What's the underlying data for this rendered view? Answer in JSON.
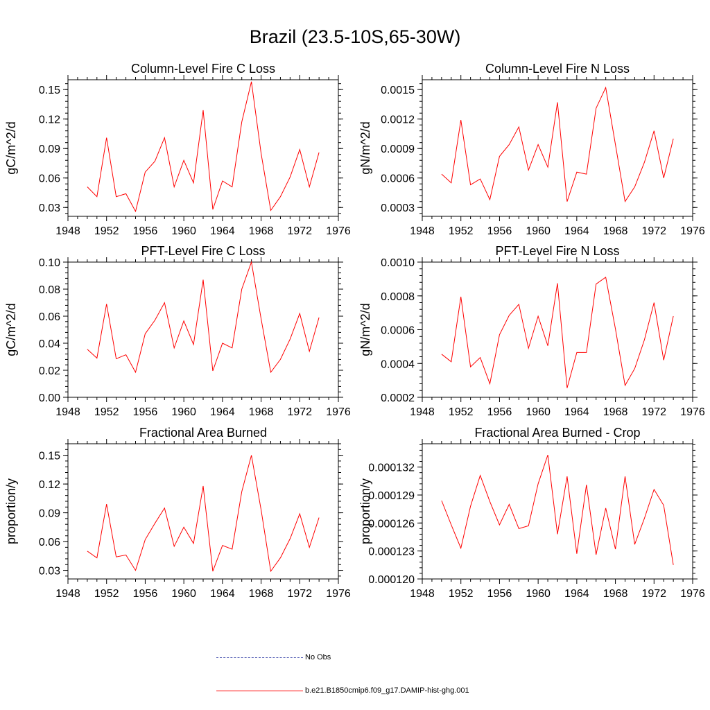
{
  "page_title": "Brazil (23.5-10S,65-30W)",
  "colors": {
    "series": "#ff0000",
    "obs": "#4a55b0",
    "axis": "#000000"
  },
  "legend": {
    "obs_label": "No Obs",
    "model_label": "b.e21.B1850cmip6.f09_g17.DAMIP-hist-ghg.001"
  },
  "chart_data": [
    {
      "type": "line",
      "title": "Column-Level Fire C Loss",
      "ylabel": "gC/m^2/d",
      "xlim": [
        1948,
        1976
      ],
      "ylim": [
        0.021,
        0.16
      ],
      "xticks": [
        "1948",
        "1952",
        "1956",
        "1960",
        "1964",
        "1968",
        "1972",
        "1976"
      ],
      "yticks": [
        0.03,
        0.06,
        0.09,
        0.12,
        0.15
      ],
      "ytick_labels": [
        "0.03",
        "0.06",
        "0.09",
        "0.12",
        "0.15"
      ],
      "x": [
        1950,
        1951,
        1952,
        1953,
        1954,
        1955,
        1956,
        1957,
        1958,
        1959,
        1960,
        1961,
        1962,
        1963,
        1964,
        1965,
        1966,
        1967,
        1968,
        1969,
        1970,
        1971,
        1972,
        1973,
        1974
      ],
      "series": [
        {
          "values": [
            0.051,
            0.041,
            0.101,
            0.041,
            0.044,
            0.026,
            0.066,
            0.077,
            0.101,
            0.051,
            0.078,
            0.055,
            0.129,
            0.028,
            0.057,
            0.051,
            0.117,
            0.158,
            0.085,
            0.027,
            0.041,
            0.061,
            0.089,
            0.051,
            0.086
          ]
        }
      ]
    },
    {
      "type": "line",
      "title": "Column-Level Fire N Loss",
      "ylabel": "gN/m^2/d",
      "xlim": [
        1948,
        1976
      ],
      "ylim": [
        0.00021,
        0.0016
      ],
      "xticks": [
        "1948",
        "1952",
        "1956",
        "1960",
        "1964",
        "1968",
        "1972",
        "1976"
      ],
      "yticks": [
        0.0003,
        0.0006,
        0.0009,
        0.0012,
        0.0015
      ],
      "ytick_labels": [
        "0.0003",
        "0.0006",
        "0.0009",
        "0.0012",
        "0.0015"
      ],
      "x": [
        1950,
        1951,
        1952,
        1953,
        1954,
        1955,
        1956,
        1957,
        1958,
        1959,
        1960,
        1961,
        1962,
        1963,
        1964,
        1965,
        1966,
        1967,
        1968,
        1969,
        1970,
        1971,
        1972,
        1973,
        1974
      ],
      "series": [
        {
          "values": [
            0.00064,
            0.00055,
            0.00119,
            0.00053,
            0.00059,
            0.00038,
            0.00082,
            0.00094,
            0.00112,
            0.00068,
            0.00094,
            0.00071,
            0.00137,
            0.00036,
            0.00066,
            0.00064,
            0.00131,
            0.00152,
            0.00094,
            0.00036,
            0.00051,
            0.00076,
            0.00108,
            0.0006,
            0.001
          ]
        }
      ]
    },
    {
      "type": "line",
      "title": "PFT-Level Fire C Loss",
      "ylabel": "gC/m^2/d",
      "xlim": [
        1948,
        1976
      ],
      "ylim": [
        0,
        0.1
      ],
      "xticks": [
        "1948",
        "1952",
        "1956",
        "1960",
        "1964",
        "1968",
        "1972",
        "1976"
      ],
      "yticks": [
        0,
        0.02,
        0.04,
        0.06,
        0.08,
        0.1
      ],
      "ytick_labels": [
        "0.00",
        "0.02",
        "0.04",
        "0.06",
        "0.08",
        "0.10"
      ],
      "x": [
        1950,
        1951,
        1952,
        1953,
        1954,
        1955,
        1956,
        1957,
        1958,
        1959,
        1960,
        1961,
        1962,
        1963,
        1964,
        1965,
        1966,
        1967,
        1968,
        1969,
        1970,
        1971,
        1972,
        1973,
        1974
      ],
      "series": [
        {
          "values": [
            0.0355,
            0.029,
            0.069,
            0.0285,
            0.0315,
            0.0185,
            0.047,
            0.057,
            0.07,
            0.0365,
            0.0565,
            0.039,
            0.087,
            0.0195,
            0.04,
            0.0365,
            0.08,
            0.1,
            0.058,
            0.0185,
            0.028,
            0.043,
            0.062,
            0.034,
            0.059
          ]
        }
      ]
    },
    {
      "type": "line",
      "title": "PFT-Level Fire N Loss",
      "ylabel": "gN/m^2/d",
      "xlim": [
        1948,
        1976
      ],
      "ylim": [
        0.0002,
        0.001
      ],
      "xticks": [
        "1948",
        "1952",
        "1956",
        "1960",
        "1964",
        "1968",
        "1972",
        "1976"
      ],
      "yticks": [
        0.0002,
        0.0004,
        0.0006,
        0.0008,
        0.001
      ],
      "ytick_labels": [
        "0.0002",
        "0.0004",
        "0.0006",
        "0.0008",
        "0.0010"
      ],
      "x": [
        1950,
        1951,
        1952,
        1953,
        1954,
        1955,
        1956,
        1957,
        1958,
        1959,
        1960,
        1961,
        1962,
        1963,
        1964,
        1965,
        1966,
        1967,
        1968,
        1969,
        1970,
        1971,
        1972,
        1973,
        1974
      ],
      "series": [
        {
          "values": [
            0.000455,
            0.00041,
            0.000795,
            0.00038,
            0.000435,
            0.00028,
            0.00057,
            0.000685,
            0.00075,
            0.00049,
            0.00068,
            0.000505,
            0.000875,
            0.000255,
            0.000465,
            0.000465,
            0.00087,
            0.00091,
            0.000605,
            0.00027,
            0.00037,
            0.00054,
            0.00076,
            0.00042,
            0.00068
          ]
        }
      ]
    },
    {
      "type": "line",
      "title": "Fractional Area Burned",
      "ylabel": "proportion/y",
      "xlim": [
        1948,
        1976
      ],
      "ylim": [
        0.021,
        0.162
      ],
      "xticks": [
        "1948",
        "1952",
        "1956",
        "1960",
        "1964",
        "1968",
        "1972",
        "1976"
      ],
      "yticks": [
        0.03,
        0.06,
        0.09,
        0.12,
        0.15
      ],
      "ytick_labels": [
        "0.03",
        "0.06",
        "0.09",
        "0.12",
        "0.15"
      ],
      "x": [
        1950,
        1951,
        1952,
        1953,
        1954,
        1955,
        1956,
        1957,
        1958,
        1959,
        1960,
        1961,
        1962,
        1963,
        1964,
        1965,
        1966,
        1967,
        1968,
        1969,
        1970,
        1971,
        1972,
        1973,
        1974
      ],
      "series": [
        {
          "values": [
            0.05,
            0.043,
            0.099,
            0.044,
            0.046,
            0.03,
            0.062,
            0.079,
            0.095,
            0.055,
            0.075,
            0.058,
            0.118,
            0.029,
            0.056,
            0.052,
            0.112,
            0.15,
            0.093,
            0.029,
            0.043,
            0.063,
            0.089,
            0.054,
            0.085
          ]
        }
      ]
    },
    {
      "type": "line",
      "title": "Fractional Area Burned - Crop",
      "ylabel": "proportion/y",
      "xlim": [
        1948,
        1976
      ],
      "ylim": [
        0.00012,
        0.0001345
      ],
      "xticks": [
        "1948",
        "1952",
        "1956",
        "1960",
        "1964",
        "1968",
        "1972",
        "1976"
      ],
      "yticks": [
        0.00012,
        0.000123,
        0.000126,
        0.000129,
        0.000132
      ],
      "ytick_labels": [
        "0.000120",
        "0.000123",
        "0.000126",
        "0.000129",
        "0.000132"
      ],
      "x": [
        1950,
        1951,
        1952,
        1953,
        1954,
        1955,
        1956,
        1957,
        1958,
        1959,
        1960,
        1961,
        1962,
        1963,
        1964,
        1965,
        1966,
        1967,
        1968,
        1969,
        1970,
        1971,
        1972,
        1973,
        1974
      ],
      "series": [
        {
          "values": [
            0.0001284,
            0.0001258,
            0.0001233,
            0.0001278,
            0.0001311,
            0.0001283,
            0.0001258,
            0.000128,
            0.0001254,
            0.0001257,
            0.0001302,
            0.0001333,
            0.0001248,
            0.000131,
            0.0001227,
            0.0001301,
            0.0001226,
            0.0001276,
            0.0001232,
            0.000131,
            0.0001237,
            0.0001265,
            0.0001296,
            0.0001279,
            0.0001215
          ]
        }
      ]
    }
  ]
}
